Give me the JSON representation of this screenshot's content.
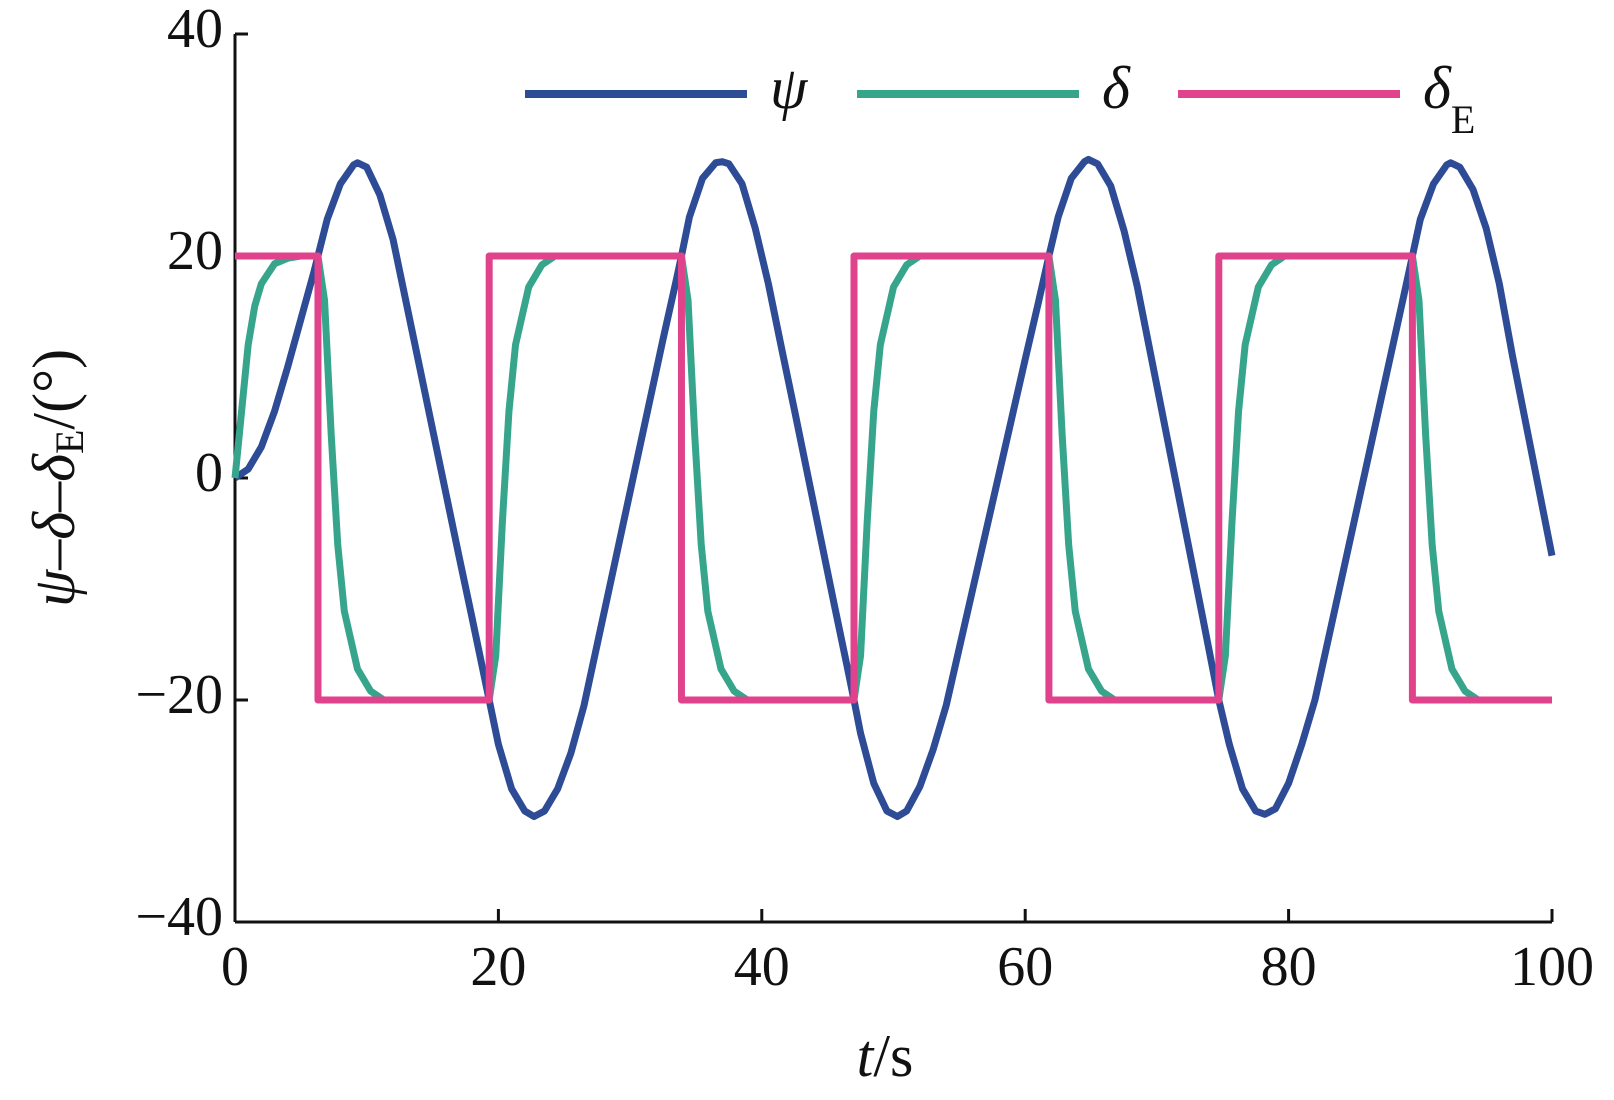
{
  "chart_data": {
    "type": "line",
    "xlabel": {
      "var": "t",
      "unit": "/s"
    },
    "ylabel": {
      "main": "ψ–δ–δ",
      "sub": "E",
      "unit": "/(°)"
    },
    "xlim": [
      0,
      100
    ],
    "xticks": [
      0,
      20,
      40,
      60,
      80,
      100
    ],
    "ylim": [
      -40,
      40
    ],
    "yticks": [
      {
        "value": -40,
        "label": "−40"
      },
      {
        "value": -20,
        "label": "−20"
      },
      0,
      20,
      40
    ],
    "series": [
      {
        "name": "ψ",
        "color": "#2e4b96",
        "x": [
          0,
          1,
          2,
          3,
          4,
          5,
          6,
          6.3,
          7,
          8,
          9,
          9.3,
          10,
          11,
          12,
          13,
          14,
          15,
          16,
          17,
          18,
          19,
          19.3,
          20,
          21,
          22,
          22.7,
          23.5,
          24.5,
          25.5,
          26.5,
          27.5,
          28.5,
          29.5,
          30.5,
          31.5,
          32.5,
          33.5,
          33.9,
          34.5,
          35.5,
          36.5,
          37,
          37.5,
          38.5,
          39.5,
          40.5,
          41.5,
          42.5,
          43.5,
          44.5,
          45.5,
          46.5,
          47,
          47.5,
          48.5,
          49.5,
          50.3,
          51,
          52,
          53,
          54,
          55,
          56,
          57,
          58,
          59,
          60,
          61,
          61.8,
          62.5,
          63.5,
          64.5,
          64.8,
          65.5,
          66.5,
          67.5,
          68.5,
          69.5,
          70.5,
          71.5,
          72.5,
          73.5,
          74.7,
          75.5,
          76.5,
          77.5,
          78.2,
          79,
          80,
          81,
          82,
          83,
          84,
          85,
          86,
          87,
          88,
          89,
          89.4,
          90,
          91,
          92,
          92.3,
          93,
          94,
          95,
          96,
          97,
          98,
          99,
          100
        ],
        "values": [
          0,
          0.8,
          2.8,
          6,
          10,
          14.3,
          18.6,
          20,
          23.3,
          26.5,
          28.2,
          28.4,
          28,
          25.5,
          21.5,
          15.8,
          10.1,
          4.4,
          -1.3,
          -7,
          -12.6,
          -18.3,
          -20,
          -24,
          -28,
          -30,
          -30.5,
          -30,
          -28,
          -24.8,
          -20.5,
          -15,
          -9.5,
          -4,
          1.5,
          7,
          12.5,
          17.8,
          20,
          23.5,
          27,
          28.4,
          28.5,
          28.3,
          26.5,
          22.5,
          17.5,
          11.7,
          6,
          0.2,
          -5.6,
          -11.4,
          -17.1,
          -20,
          -23,
          -27.5,
          -30,
          -30.5,
          -30,
          -27.8,
          -24.5,
          -20.5,
          -15.3,
          -10.1,
          -4.9,
          0.3,
          5.5,
          10.7,
          15.8,
          20,
          23.5,
          27,
          28.5,
          28.7,
          28.3,
          26.3,
          22.3,
          17.3,
          11.3,
          5.3,
          -0.7,
          -6.7,
          -12.7,
          -20,
          -24,
          -28,
          -30,
          -30.3,
          -29.8,
          -27.5,
          -24,
          -20,
          -14.6,
          -9.2,
          -3.8,
          1.6,
          7,
          12.4,
          17.8,
          20,
          23.3,
          26.5,
          28.2,
          28.4,
          28,
          26,
          22.5,
          17.5,
          11,
          5,
          -1,
          -7
        ]
      },
      {
        "name": "δ",
        "color": "#37a58c",
        "x": [
          0,
          0.5,
          1,
          1.5,
          2,
          3,
          4,
          5,
          6.3,
          6.8,
          7.3,
          7.8,
          8.3,
          9.3,
          10.3,
          11.3,
          19.3,
          19.8,
          20.3,
          20.8,
          21.3,
          22.3,
          23.3,
          24.3,
          33.9,
          34.4,
          34.9,
          35.4,
          35.9,
          36.9,
          37.9,
          38.9,
          47,
          47.5,
          48,
          48.5,
          49,
          50,
          51,
          52,
          61.8,
          62.3,
          62.8,
          63.3,
          63.8,
          64.8,
          65.8,
          66.8,
          74.7,
          75.2,
          75.7,
          76.2,
          76.7,
          77.7,
          78.7,
          79.7,
          89.4,
          89.9,
          90.4,
          90.9,
          91.4,
          92.4,
          93.4,
          94.4,
          100
        ],
        "values": [
          0,
          6,
          12,
          15.5,
          17.5,
          19.3,
          19.8,
          20,
          20,
          16,
          4,
          -6,
          -12,
          -17.2,
          -19.2,
          -20,
          -20,
          -16,
          -4,
          6,
          12,
          17.2,
          19.2,
          20,
          20,
          16,
          4,
          -6,
          -12,
          -17.2,
          -19.2,
          -20,
          -20,
          -16,
          -4,
          6,
          12,
          17.2,
          19.2,
          20,
          20,
          16,
          4,
          -6,
          -12,
          -17.2,
          -19.2,
          -20,
          -20,
          -16,
          -4,
          6,
          12,
          17.2,
          19.2,
          20,
          20,
          16,
          4,
          -6,
          -12,
          -17.2,
          -19.2,
          -20,
          -20
        ]
      },
      {
        "name": "δ",
        "subscript": "E",
        "color": "#e0428c",
        "x": [
          0,
          6.3,
          6.3,
          19.3,
          19.3,
          33.9,
          33.9,
          47,
          47,
          61.8,
          61.8,
          74.7,
          74.7,
          89.4,
          89.4,
          100
        ],
        "values": [
          20,
          20,
          -20,
          -20,
          20,
          20,
          -20,
          -20,
          20,
          20,
          -20,
          -20,
          20,
          20,
          -20,
          -20
        ]
      }
    ]
  }
}
